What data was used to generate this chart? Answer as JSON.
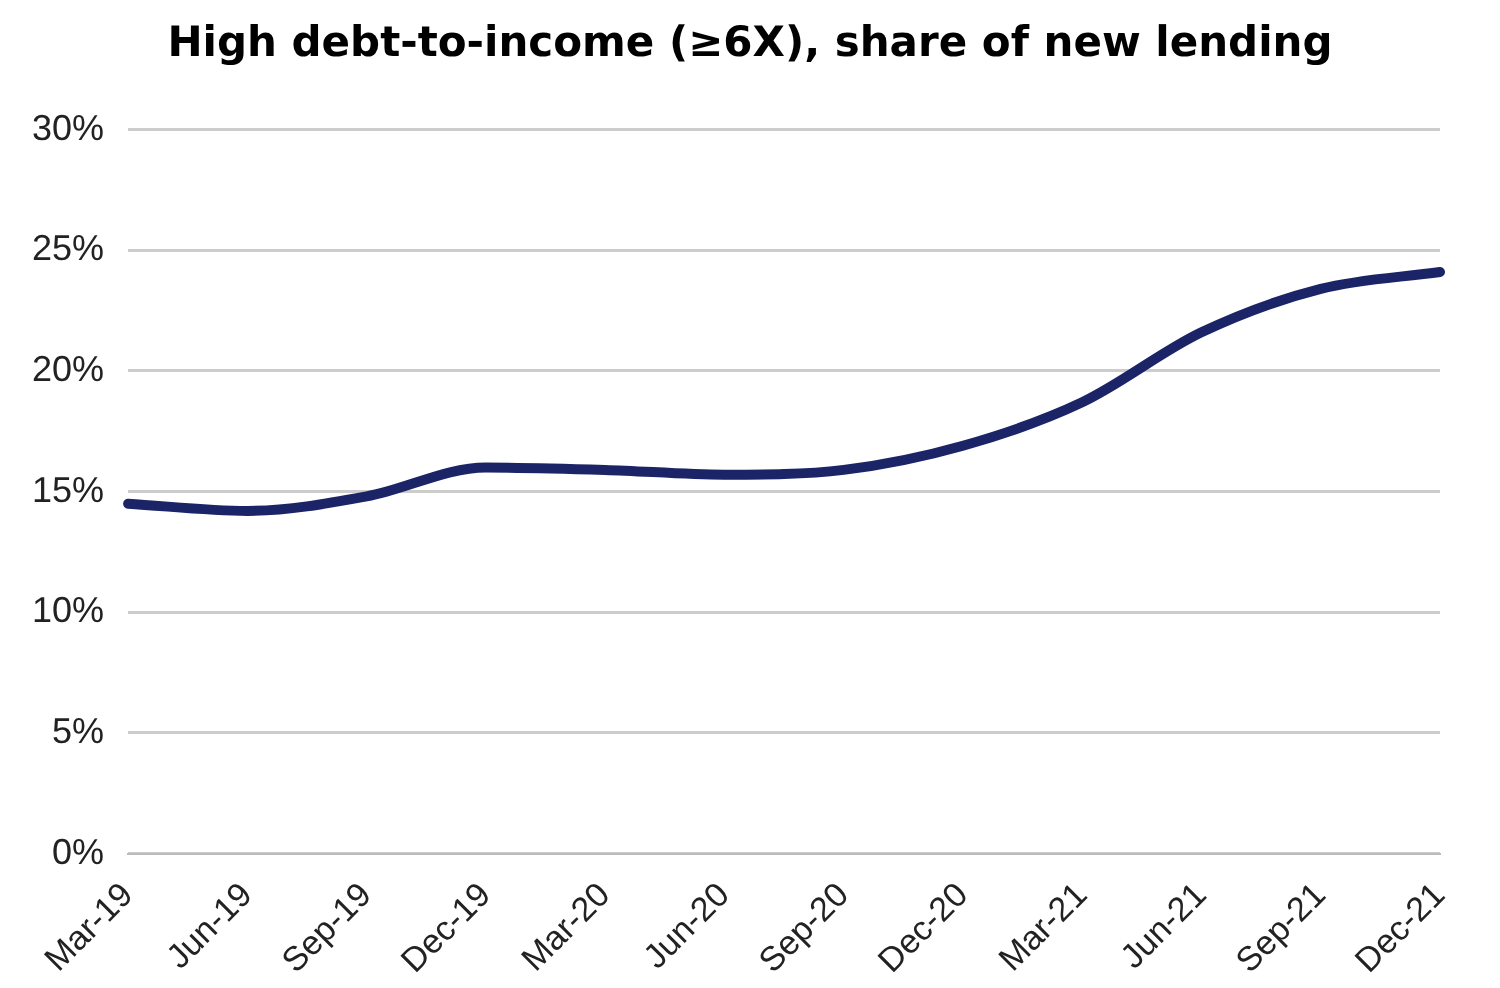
{
  "chart_data": {
    "type": "line",
    "title": "High debt-to-income (≥6X), share of new lending",
    "categories": [
      "Mar-19",
      "Jun-19",
      "Sep-19",
      "Dec-19",
      "Mar-20",
      "Jun-20",
      "Sep-20",
      "Dec-20",
      "Mar-21",
      "Jun-21",
      "Sep-21",
      "Dec-21"
    ],
    "series": [
      {
        "color": "#1b2466",
        "values": [
          14.5,
          14.2,
          14.8,
          16.0,
          15.9,
          15.7,
          15.9,
          16.9,
          18.7,
          21.6,
          23.4,
          24.1
        ]
      }
    ],
    "ylim": [
      0,
      30
    ],
    "yticks": [
      {
        "value": 0,
        "label": "0%"
      },
      {
        "value": 5,
        "label": "5%"
      },
      {
        "value": 10,
        "label": "10%"
      },
      {
        "value": 15,
        "label": "15%"
      },
      {
        "value": 20,
        "label": "20%"
      },
      {
        "value": 25,
        "label": "25%"
      },
      {
        "value": 30,
        "label": "30%"
      }
    ],
    "grid": "y",
    "legend": false,
    "marker": "none",
    "line_style": "solid"
  }
}
